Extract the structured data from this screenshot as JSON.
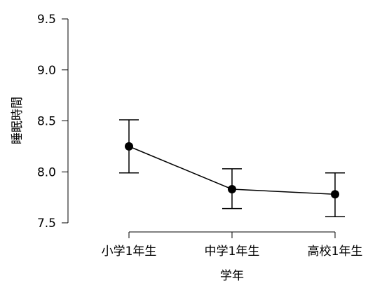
{
  "chart_data": {
    "type": "line",
    "title": "",
    "xlabel": "学年",
    "ylabel": "睡眠時間",
    "categories": [
      "小学1年生",
      "中学1年生",
      "高校1年生"
    ],
    "series": [
      {
        "values": [
          8.25,
          7.83,
          7.78
        ],
        "error_low": [
          7.99,
          7.64,
          7.56
        ],
        "error_high": [
          8.51,
          8.03,
          7.99
        ]
      }
    ],
    "ylim": [
      7.5,
      9.5
    ],
    "yticks": [
      "7.5",
      "8.0",
      "8.5",
      "9.0",
      "9.5"
    ],
    "grid": false,
    "colors": {
      "line": "#000000",
      "marker": "#000000",
      "axis": "#000000"
    }
  }
}
